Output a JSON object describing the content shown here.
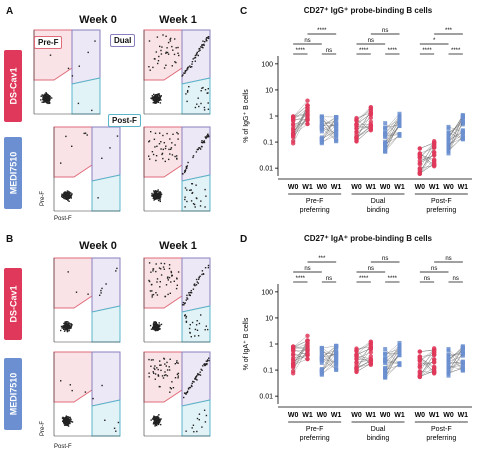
{
  "panels": {
    "A": {
      "letter": "A",
      "week0": "Week 0",
      "week1": "Week 1",
      "row1": "DS-Cav1",
      "row2": "MEDI7510"
    },
    "B": {
      "letter": "B",
      "week0": "Week 0",
      "week1": "Week 1",
      "row1": "DS-Cav1",
      "row2": "MEDI7510"
    },
    "C": {
      "letter": "C",
      "title": "CD27⁺ IgG⁺ probe-binding B cells",
      "ylabel": "% of IgG⁺ B cells"
    },
    "D": {
      "letter": "D",
      "title": "CD27⁺ IgA⁺ probe-binding B cells",
      "ylabel": "% of IgA⁺ B cells"
    }
  },
  "gates": {
    "pref": "Pre-F",
    "dual": "Dual",
    "postf": "Post-F"
  },
  "flow_axes": {
    "y": "Pre-F",
    "x": "Post-F"
  },
  "colors": {
    "dscav1": "#e0385a",
    "medi7510": "#6b8fd0",
    "pre_gate": "#e06b7a",
    "dual_gate": "#8a7fbf",
    "post_gate": "#5bb5c9"
  },
  "chart_data": [
    {
      "type": "scatter",
      "title": "CD27⁺ IgG⁺ probe-binding B cells",
      "ylabel": "% of IgG⁺ B cells",
      "yscale": "log",
      "ylim": [
        0.005,
        200
      ],
      "yticks": [
        "100",
        "10",
        "1",
        "0.1",
        "0.01"
      ],
      "categories": [
        "W0",
        "W1",
        "W0",
        "W1",
        "W0",
        "W1",
        "W0",
        "W1",
        "W0",
        "W1",
        "W0",
        "W1"
      ],
      "groups": [
        "Pre-F\npreferring",
        "Dual\nbinding",
        "Post-F\npreferring"
      ],
      "series": [
        {
          "color": "#e0385a",
          "group": 0,
          "w0": 0.3,
          "w1": 1.5
        },
        {
          "color": "#6b8fd0",
          "group": 0,
          "w0": 0.3,
          "w1": 0.32
        },
        {
          "color": "#e0385a",
          "group": 1,
          "w0": 0.25,
          "w1": 0.8
        },
        {
          "color": "#6b8fd0",
          "group": 1,
          "w0": 0.15,
          "w1": 0.5
        },
        {
          "color": "#e0385a",
          "group": 2,
          "w0": 0.02,
          "w1": 0.035
        },
        {
          "color": "#6b8fd0",
          "group": 2,
          "w0": 0.12,
          "w1": 0.4
        }
      ],
      "annotations": [
        {
          "text": "****",
          "from": 0,
          "to": 1,
          "level": 0
        },
        {
          "text": "ns",
          "from": 2,
          "to": 3,
          "level": 0
        },
        {
          "text": "ns",
          "from": 0,
          "to": 2,
          "level": 1
        },
        {
          "text": "****",
          "from": 1,
          "to": 3,
          "level": 2
        },
        {
          "text": "****",
          "from": 4,
          "to": 5,
          "level": 0
        },
        {
          "text": "****",
          "from": 6,
          "to": 7,
          "level": 0
        },
        {
          "text": "ns",
          "from": 4,
          "to": 6,
          "level": 1
        },
        {
          "text": "ns",
          "from": 5,
          "to": 7,
          "level": 2
        },
        {
          "text": "****",
          "from": 8,
          "to": 9,
          "level": 0
        },
        {
          "text": "****",
          "from": 10,
          "to": 11,
          "level": 0
        },
        {
          "text": "*",
          "from": 8,
          "to": 10,
          "level": 1
        },
        {
          "text": "***",
          "from": 9,
          "to": 11,
          "level": 2
        }
      ]
    },
    {
      "type": "scatter",
      "title": "CD27⁺ IgA⁺ probe-binding B cells",
      "ylabel": "% of IgA⁺ B cells",
      "yscale": "log",
      "ylim": [
        0.005,
        200
      ],
      "yticks": [
        "100",
        "10",
        "1",
        "0.1",
        "0.01"
      ],
      "categories": [
        "W0",
        "W1",
        "W0",
        "W1",
        "W0",
        "W1",
        "W0",
        "W1",
        "W0",
        "W1",
        "W0",
        "W1"
      ],
      "groups": [
        "Pre-F\npreferring",
        "Dual\nbinding",
        "Post-F\npreferring"
      ],
      "series": [
        {
          "color": "#e0385a",
          "group": 0,
          "w0": 0.25,
          "w1": 0.8
        },
        {
          "color": "#6b8fd0",
          "group": 0,
          "w0": 0.22,
          "w1": 0.3
        },
        {
          "color": "#e0385a",
          "group": 1,
          "w0": 0.2,
          "w1": 0.45
        },
        {
          "color": "#6b8fd0",
          "group": 1,
          "w0": 0.18,
          "w1": 0.45
        },
        {
          "color": "#e0385a",
          "group": 2,
          "w0": 0.18,
          "w1": 0.22
        },
        {
          "color": "#6b8fd0",
          "group": 2,
          "w0": 0.2,
          "w1": 0.3
        }
      ],
      "annotations": [
        {
          "text": "****",
          "from": 0,
          "to": 1,
          "level": 0
        },
        {
          "text": "ns",
          "from": 2,
          "to": 3,
          "level": 0
        },
        {
          "text": "ns",
          "from": 0,
          "to": 2,
          "level": 1
        },
        {
          "text": "***",
          "from": 1,
          "to": 3,
          "level": 2
        },
        {
          "text": "****",
          "from": 4,
          "to": 5,
          "level": 0
        },
        {
          "text": "****",
          "from": 6,
          "to": 7,
          "level": 0
        },
        {
          "text": "ns",
          "from": 4,
          "to": 6,
          "level": 1
        },
        {
          "text": "ns",
          "from": 5,
          "to": 7,
          "level": 2
        },
        {
          "text": "ns",
          "from": 8,
          "to": 9,
          "level": 0
        },
        {
          "text": "ns",
          "from": 10,
          "to": 11,
          "level": 0
        },
        {
          "text": "ns",
          "from": 8,
          "to": 10,
          "level": 1
        },
        {
          "text": "ns",
          "from": 9,
          "to": 11,
          "level": 2
        }
      ]
    }
  ]
}
